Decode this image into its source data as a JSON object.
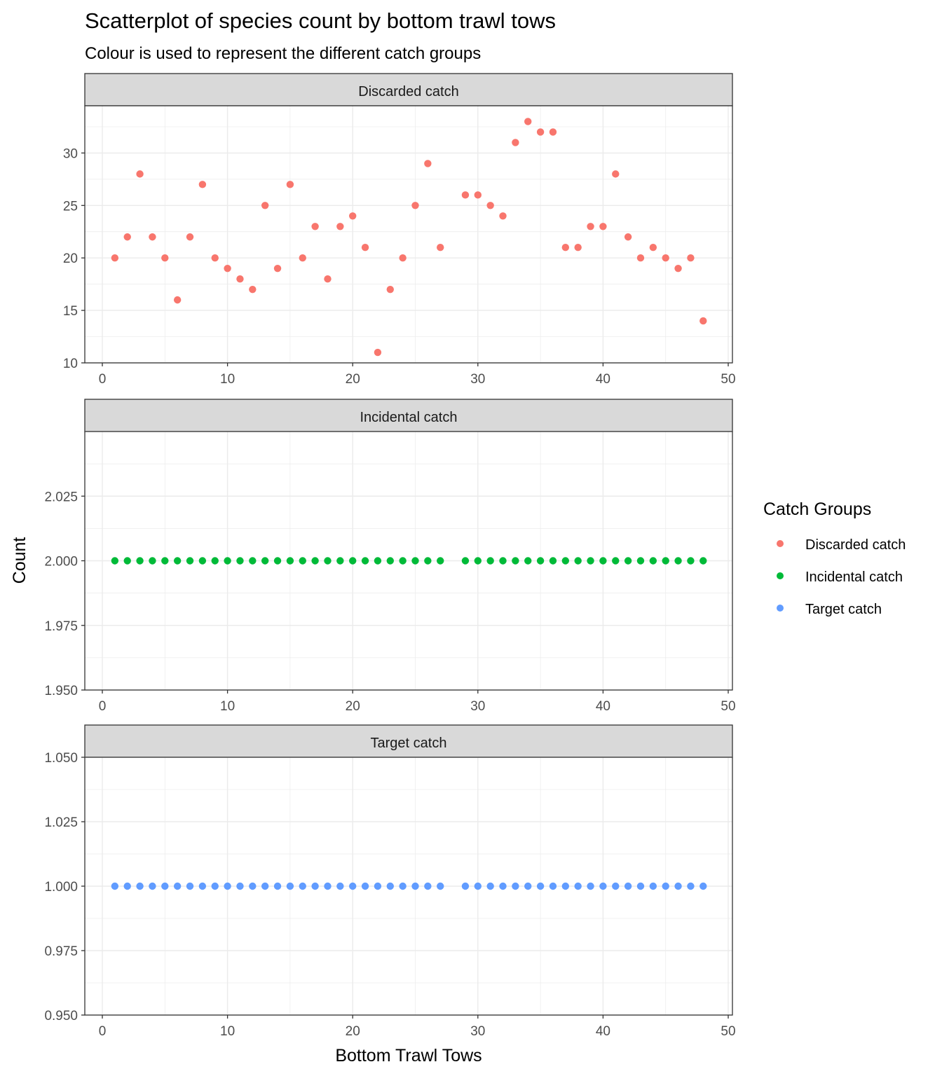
{
  "chart_data": {
    "type": "scatter",
    "title": "Scatterplot of species count by bottom trawl tows",
    "subtitle": "Colour is used to represent the different catch groups",
    "xlabel": "Bottom Trawl Tows",
    "ylabel": "Count",
    "xlim": [
      0,
      50
    ],
    "x_ticks": [
      "0",
      "10",
      "20",
      "30",
      "40",
      "50"
    ],
    "grid": true,
    "legend_position": "right",
    "legend_title": "Catch Groups",
    "panels": [
      {
        "name": "Discarded catch",
        "color": "#F8766D",
        "ylim": [
          10,
          34.5
        ],
        "y_ticks": [
          "10",
          "15",
          "20",
          "25",
          "30"
        ],
        "x": [
          1,
          2,
          3,
          4,
          5,
          6,
          7,
          8,
          9,
          10,
          11,
          12,
          13,
          14,
          15,
          16,
          17,
          18,
          19,
          20,
          21,
          22,
          23,
          24,
          25,
          26,
          27,
          29,
          30,
          31,
          32,
          33,
          34,
          35,
          36,
          37,
          38,
          39,
          40,
          41,
          42,
          43,
          44,
          45,
          46,
          47,
          48
        ],
        "y": [
          20,
          22,
          28,
          22,
          20,
          16,
          22,
          27,
          20,
          19,
          18,
          17,
          25,
          19,
          27,
          20,
          23,
          18,
          23,
          24,
          21,
          11,
          17,
          20,
          25,
          29,
          21,
          26,
          26,
          25,
          24,
          31,
          33,
          32,
          32,
          21,
          21,
          23,
          23,
          28,
          22,
          20,
          21,
          20,
          19,
          20,
          14
        ]
      },
      {
        "name": "Incidental catch",
        "color": "#00BA38",
        "ylim": [
          1.95,
          2.05
        ],
        "y_ticks": [
          "1.950",
          "1.975",
          "2.000",
          "2.025"
        ],
        "x": [
          1,
          2,
          3,
          4,
          5,
          6,
          7,
          8,
          9,
          10,
          11,
          12,
          13,
          14,
          15,
          16,
          17,
          18,
          19,
          20,
          21,
          22,
          23,
          24,
          25,
          26,
          27,
          29,
          30,
          31,
          32,
          33,
          34,
          35,
          36,
          37,
          38,
          39,
          40,
          41,
          42,
          43,
          44,
          45,
          46,
          47,
          48
        ],
        "y": [
          2,
          2,
          2,
          2,
          2,
          2,
          2,
          2,
          2,
          2,
          2,
          2,
          2,
          2,
          2,
          2,
          2,
          2,
          2,
          2,
          2,
          2,
          2,
          2,
          2,
          2,
          2,
          2,
          2,
          2,
          2,
          2,
          2,
          2,
          2,
          2,
          2,
          2,
          2,
          2,
          2,
          2,
          2,
          2,
          2,
          2,
          2
        ]
      },
      {
        "name": "Target catch",
        "color": "#619CFF",
        "ylim": [
          0.95,
          1.05
        ],
        "y_ticks": [
          "0.950",
          "0.975",
          "1.000",
          "1.025",
          "1.050"
        ],
        "x": [
          1,
          2,
          3,
          4,
          5,
          6,
          7,
          8,
          9,
          10,
          11,
          12,
          13,
          14,
          15,
          16,
          17,
          18,
          19,
          20,
          21,
          22,
          23,
          24,
          25,
          26,
          27,
          29,
          30,
          31,
          32,
          33,
          34,
          35,
          36,
          37,
          38,
          39,
          40,
          41,
          42,
          43,
          44,
          45,
          46,
          47,
          48
        ],
        "y": [
          1,
          1,
          1,
          1,
          1,
          1,
          1,
          1,
          1,
          1,
          1,
          1,
          1,
          1,
          1,
          1,
          1,
          1,
          1,
          1,
          1,
          1,
          1,
          1,
          1,
          1,
          1,
          1,
          1,
          1,
          1,
          1,
          1,
          1,
          1,
          1,
          1,
          1,
          1,
          1,
          1,
          1,
          1,
          1,
          1,
          1,
          1
        ]
      }
    ],
    "legend": [
      {
        "label": "Discarded catch",
        "color": "#F8766D"
      },
      {
        "label": "Incidental catch",
        "color": "#00BA38"
      },
      {
        "label": "Target catch",
        "color": "#619CFF"
      }
    ]
  }
}
